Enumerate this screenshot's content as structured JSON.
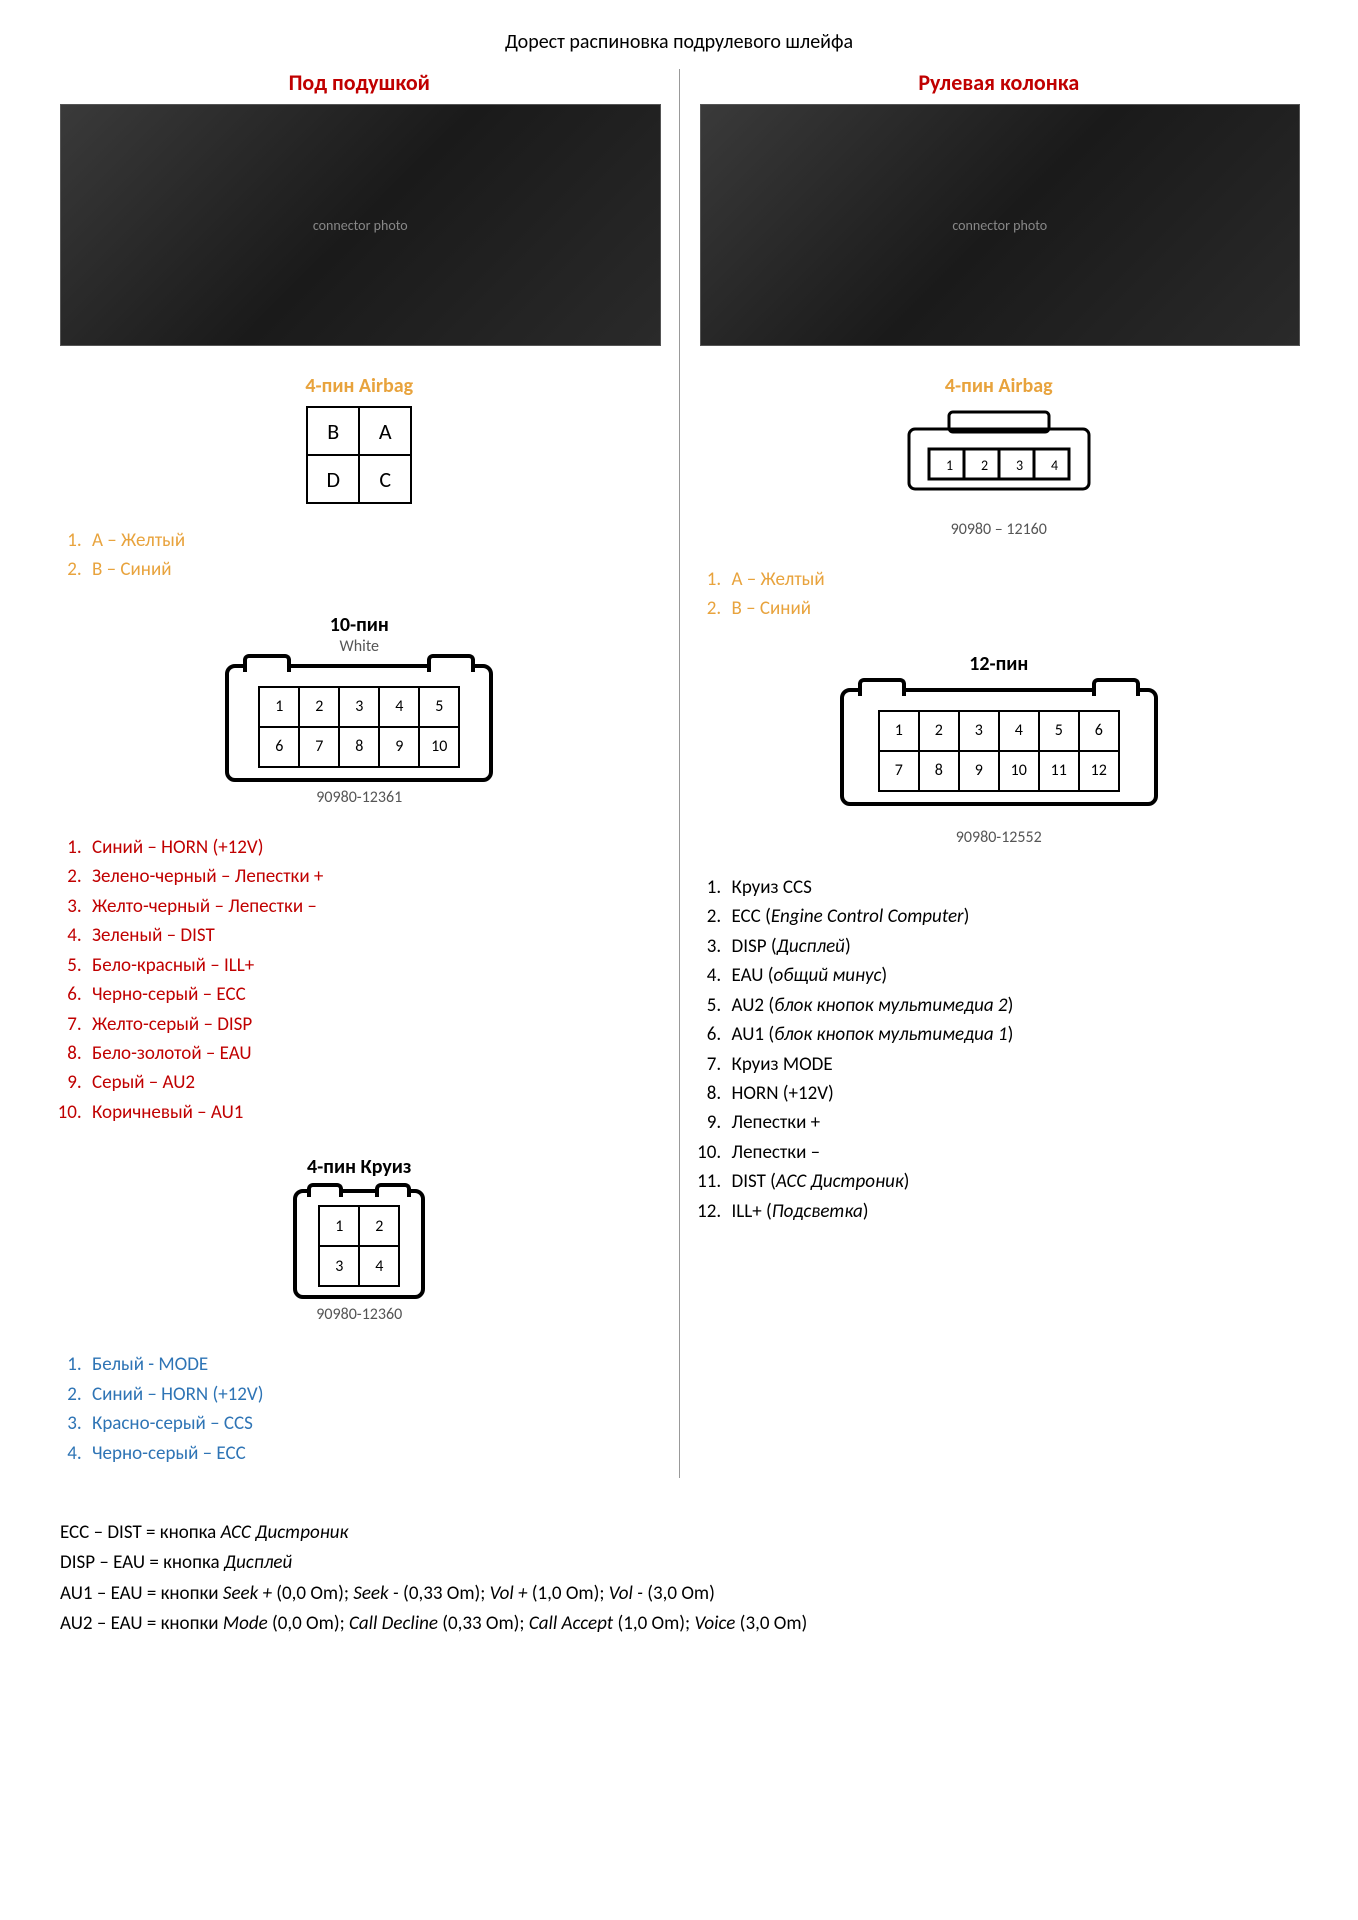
{
  "title": "Дорест распиновка подрулевого шлейфа",
  "colors": {
    "red": "#c00000",
    "orange": "#e8a33d",
    "blue": "#2e74b5",
    "black": "#000000",
    "gray_text": "#555555",
    "background": "#ffffff"
  },
  "typography": {
    "body_font": "Calibri",
    "title_size_pt": 15,
    "header_size_pt": 16,
    "list_size_pt": 14
  },
  "left": {
    "header": "Под подушкой",
    "header_color": "#c00000",
    "airbag": {
      "title": "4-пин Airbag",
      "title_color": "#e8a33d",
      "grid": [
        [
          "B",
          "A"
        ],
        [
          "D",
          "C"
        ]
      ],
      "list_color": "#e8a33d",
      "items": [
        "A – Желтый",
        "B – Синий"
      ]
    },
    "conn10": {
      "title": "10-пин",
      "sub": "White",
      "part_number": "90980-12361",
      "grid_cols": 5,
      "grid_rows": 2,
      "pins": [
        "1",
        "2",
        "3",
        "4",
        "5",
        "6",
        "7",
        "8",
        "9",
        "10"
      ],
      "list_color": "#c00000",
      "items": [
        "Синий – HORN (+12V)",
        "Зелено-черный – Лепестки +",
        "Желто-черный – Лепестки –",
        "Зеленый – DIST",
        "Бело-красный – ILL+",
        "Черно-серый – ECC",
        "Желто-серый – DISP",
        "Бело-золотой – EAU",
        "Серый – AU2",
        "Коричневый – AU1"
      ]
    },
    "conn4cruise": {
      "title": "4-пин Круиз",
      "part_number": "90980-12360",
      "grid_cols": 2,
      "grid_rows": 2,
      "pins": [
        "1",
        "2",
        "3",
        "4"
      ],
      "list_color": "#2e74b5",
      "items": [
        "Белый - MODE",
        "Синий – HORN (+12V)",
        "Красно-серый – CCS",
        "Черно-серый – ECC"
      ]
    }
  },
  "right": {
    "header": "Рулевая колонка",
    "header_color": "#c00000",
    "airbag": {
      "title": "4-пин Airbag",
      "title_color": "#e8a33d",
      "part_number": "90980 – 12160",
      "pins": [
        "1",
        "2",
        "3",
        "4"
      ],
      "list_color": "#e8a33d",
      "items": [
        "A – Желтый",
        "B – Синий"
      ]
    },
    "conn12": {
      "title": "12-пин",
      "part_number": "90980-12552",
      "grid_cols": 6,
      "grid_rows": 2,
      "pins": [
        "1",
        "2",
        "3",
        "4",
        "5",
        "6",
        "7",
        "8",
        "9",
        "10",
        "11",
        "12"
      ],
      "list_color": "#000000",
      "items": [
        {
          "text": "Круиз CCS"
        },
        {
          "text": "ECC (",
          "italic": "Engine Control Computer",
          "after": ")"
        },
        {
          "text": "DISP (",
          "italic": "Дисплей",
          "after": ")"
        },
        {
          "text": "EAU (",
          "italic": "общий минус",
          "after": ")"
        },
        {
          "text": "AU2 (",
          "italic": "блок кнопок мультимедиа 2",
          "after": ")"
        },
        {
          "text": "AU1 (",
          "italic": "блок кнопок мультимедиа 1",
          "after": ")"
        },
        {
          "text": "Круиз MODE"
        },
        {
          "text": "HORN (+12V)"
        },
        {
          "text": "Лепестки +"
        },
        {
          "text": "Лепестки –"
        },
        {
          "text": "DIST (",
          "italic": "ACC Дистроник",
          "after": ")"
        },
        {
          "text": "ILL+ (",
          "italic": "Подсветка",
          "after": ")"
        }
      ]
    }
  },
  "notes": [
    {
      "prefix": "ECC – DIST = кнопка ",
      "italic": "ACC Дистроник"
    },
    {
      "prefix": "DISP – EAU = кнопка ",
      "italic": "Дисплей"
    },
    {
      "prefix": "AU1 – EAU = кнопки ",
      "italic": "Seek +",
      "mid1": " (0,0 Om); ",
      "italic2": "Seek -",
      "mid2": " (0,33 Om); ",
      "italic3": "Vol +",
      "mid3": " (1,0 Om); ",
      "italic4": "Vol -",
      "tail": " (3,0 Om)"
    },
    {
      "prefix": "AU2 – EAU = кнопки ",
      "italic": "Mode",
      "mid1": " (0,0 Om); ",
      "italic2": "Call Decline",
      "mid2": " (0,33 Om); ",
      "italic3": "Call Accept",
      "mid3": " (1,0 Om); ",
      "italic4": "Voice",
      "tail": " (3,0 Om)"
    }
  ]
}
